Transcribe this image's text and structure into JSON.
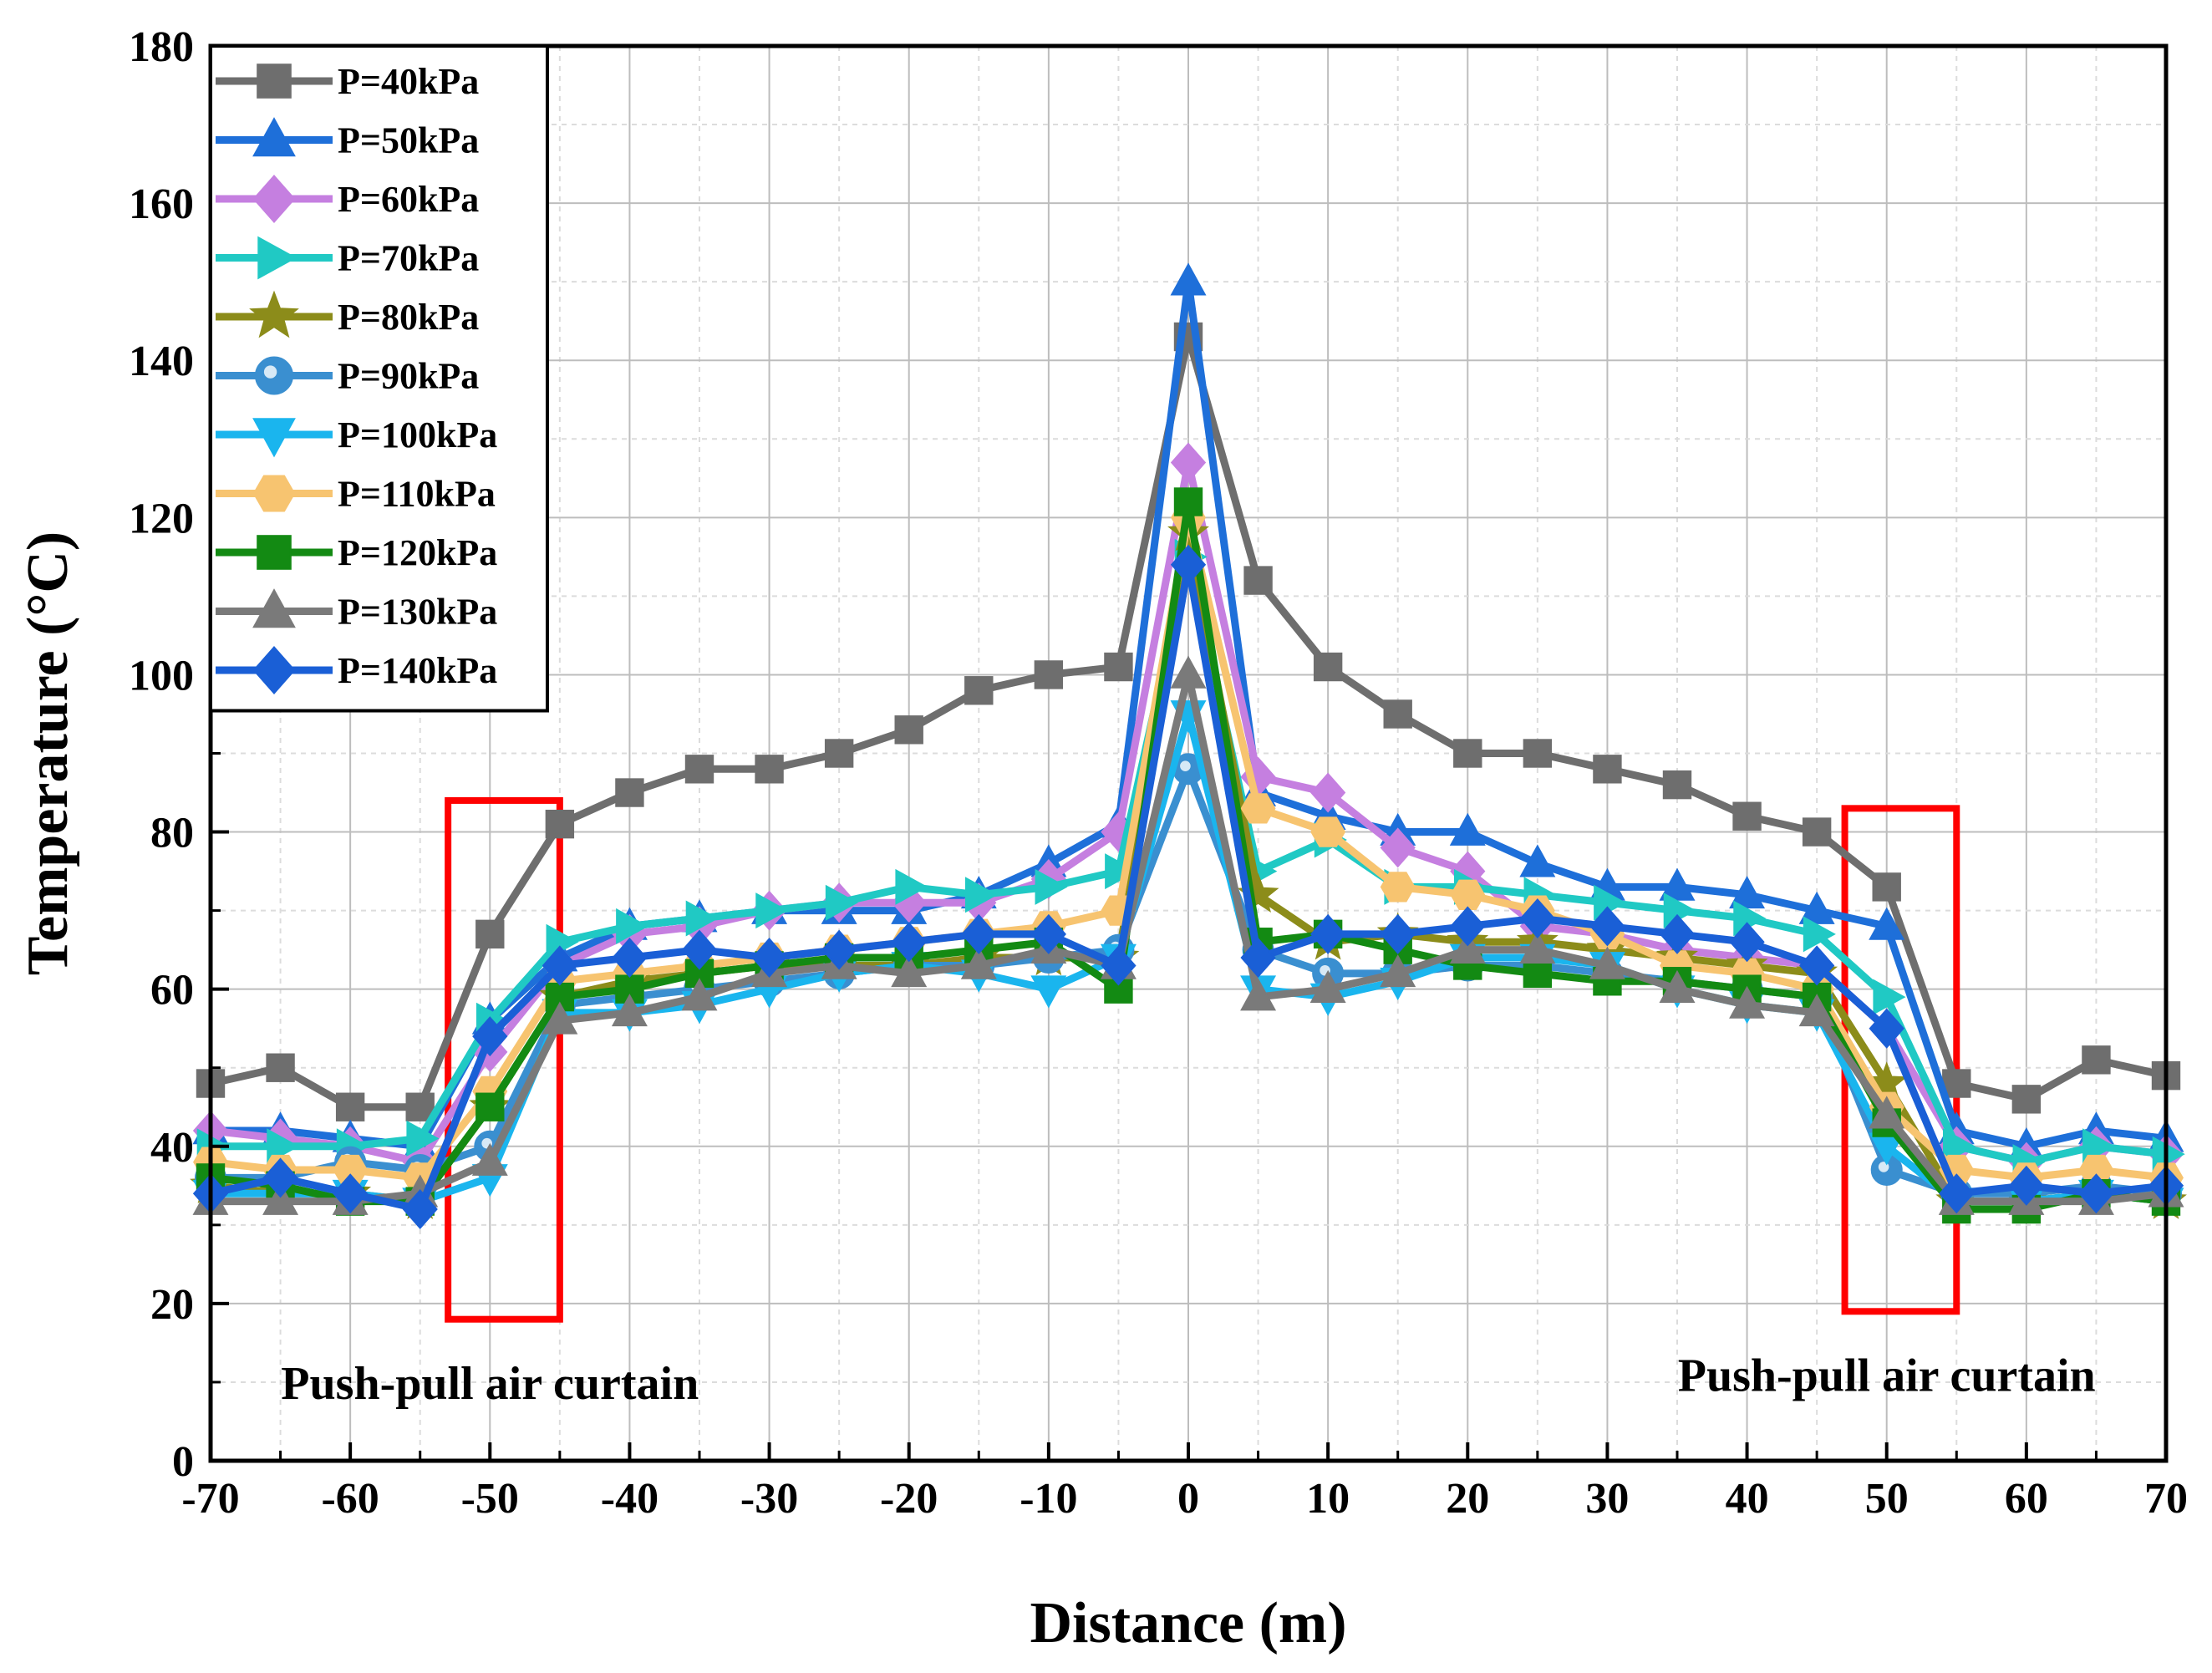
{
  "chart_data": {
    "type": "line",
    "title": "",
    "xlabel": "Distance (m)",
    "ylabel": "Temperature (°C)",
    "xlim": [
      -70,
      70
    ],
    "ylim": [
      0,
      180
    ],
    "xticks": [
      -70,
      -60,
      -50,
      -40,
      -30,
      -20,
      -10,
      0,
      10,
      20,
      30,
      40,
      50,
      60,
      70
    ],
    "yticks": [
      0,
      20,
      40,
      60,
      80,
      100,
      120,
      140,
      160,
      180
    ],
    "grid": true,
    "legend_position": "top-left",
    "x": [
      -70,
      -65,
      -60,
      -55,
      -50,
      -45,
      -40,
      -35,
      -30,
      -25,
      -20,
      -15,
      -10,
      -5,
      0,
      5,
      10,
      15,
      20,
      25,
      30,
      35,
      40,
      45,
      50,
      55,
      60,
      65,
      70
    ],
    "series": [
      {
        "name": "P=40kPa",
        "color": "#6e6e6e",
        "marker": "square",
        "values": [
          48,
          50,
          45,
          45,
          67,
          81,
          85,
          88,
          88,
          90,
          93,
          98,
          100,
          101,
          143,
          112,
          101,
          95,
          90,
          90,
          88,
          86,
          82,
          80,
          73,
          48,
          46,
          51,
          49
        ]
      },
      {
        "name": "P=50kPa",
        "color": "#1e6fd9",
        "marker": "triangle-up",
        "values": [
          42,
          42,
          41,
          40,
          56,
          64,
          68,
          69,
          70,
          70,
          70,
          72,
          76,
          81,
          150,
          85,
          82,
          80,
          80,
          76,
          73,
          73,
          72,
          70,
          68,
          42,
          40,
          42,
          41
        ]
      },
      {
        "name": "P=60kPa",
        "color": "#c57fe0",
        "marker": "diamond",
        "values": [
          42,
          41,
          40,
          38,
          52,
          63,
          67,
          68,
          70,
          71,
          71,
          71,
          74,
          80,
          127,
          87,
          85,
          78,
          75,
          68,
          67,
          65,
          64,
          63,
          55,
          40,
          38,
          40,
          39
        ]
      },
      {
        "name": "P=70kPa",
        "color": "#20c9c4",
        "marker": "triangle-right",
        "values": [
          40,
          40,
          40,
          41,
          56,
          66,
          68,
          69,
          70,
          71,
          73,
          72,
          73,
          75,
          115,
          75,
          79,
          73,
          73,
          72,
          71,
          70,
          69,
          67,
          59,
          40,
          38,
          40,
          39
        ]
      },
      {
        "name": "P=80kPa",
        "color": "#8c8c1a",
        "marker": "star",
        "values": [
          35,
          34,
          34,
          33,
          45,
          59,
          61,
          62,
          63,
          63,
          63,
          64,
          64,
          64,
          118,
          72,
          66,
          67,
          66,
          66,
          65,
          64,
          63,
          62,
          48,
          33,
          33,
          34,
          33
        ]
      },
      {
        "name": "P=90kPa",
        "color": "#3a8fd0",
        "marker": "circle",
        "values": [
          36,
          36,
          38,
          37,
          40,
          58,
          59,
          60,
          61,
          62,
          63,
          63,
          64,
          65,
          88,
          65,
          62,
          62,
          63,
          63,
          62,
          61,
          60,
          59,
          37,
          34,
          34,
          35,
          34
        ]
      },
      {
        "name": "P=100kPa",
        "color": "#1ab5ee",
        "marker": "triangle-down",
        "values": [
          34,
          34,
          34,
          33,
          36,
          57,
          57,
          58,
          60,
          62,
          63,
          62,
          60,
          64,
          95,
          60,
          59,
          61,
          64,
          64,
          63,
          60,
          58,
          57,
          40,
          33,
          33,
          34,
          33
        ]
      },
      {
        "name": "P=110kPa",
        "color": "#f7c470",
        "marker": "hexagon",
        "values": [
          38,
          37,
          37,
          36,
          47,
          61,
          62,
          63,
          64,
          65,
          66,
          67,
          68,
          70,
          120,
          83,
          80,
          73,
          72,
          70,
          67,
          63,
          62,
          60,
          45,
          37,
          36,
          37,
          36
        ]
      },
      {
        "name": "P=120kPa",
        "color": "#138a13",
        "marker": "square",
        "values": [
          36,
          35,
          33,
          33,
          45,
          59,
          60,
          62,
          63,
          64,
          64,
          65,
          66,
          60,
          122,
          66,
          67,
          65,
          63,
          62,
          61,
          61,
          60,
          59,
          43,
          32,
          32,
          34,
          33
        ]
      },
      {
        "name": "P=130kPa",
        "color": "#7a7a7a",
        "marker": "triangle-up",
        "values": [
          33,
          33,
          33,
          34,
          38,
          56,
          57,
          59,
          62,
          63,
          62,
          63,
          65,
          63,
          100,
          59,
          60,
          62,
          65,
          65,
          63,
          60,
          58,
          57,
          44,
          33,
          33,
          33,
          34
        ]
      },
      {
        "name": "P=140kPa",
        "color": "#1a5fd6",
        "marker": "diamond",
        "values": [
          34,
          36,
          34,
          32,
          54,
          63,
          64,
          65,
          64,
          65,
          66,
          67,
          67,
          63,
          114,
          64,
          67,
          67,
          68,
          69,
          68,
          67,
          66,
          63,
          55,
          34,
          35,
          34,
          35
        ]
      }
    ],
    "annotations": [
      {
        "text": "Push-pull air curtain",
        "x": -50,
        "y": 10
      },
      {
        "text": "Push-pull air curtain",
        "x": 50,
        "y": 11
      }
    ],
    "highlight_boxes": [
      {
        "x_range": [
          -53,
          -45
        ],
        "y_range": [
          18,
          84
        ],
        "color": "#ff0000"
      },
      {
        "x_range": [
          47,
          55
        ],
        "y_range": [
          19,
          83
        ],
        "color": "#ff0000"
      }
    ]
  }
}
